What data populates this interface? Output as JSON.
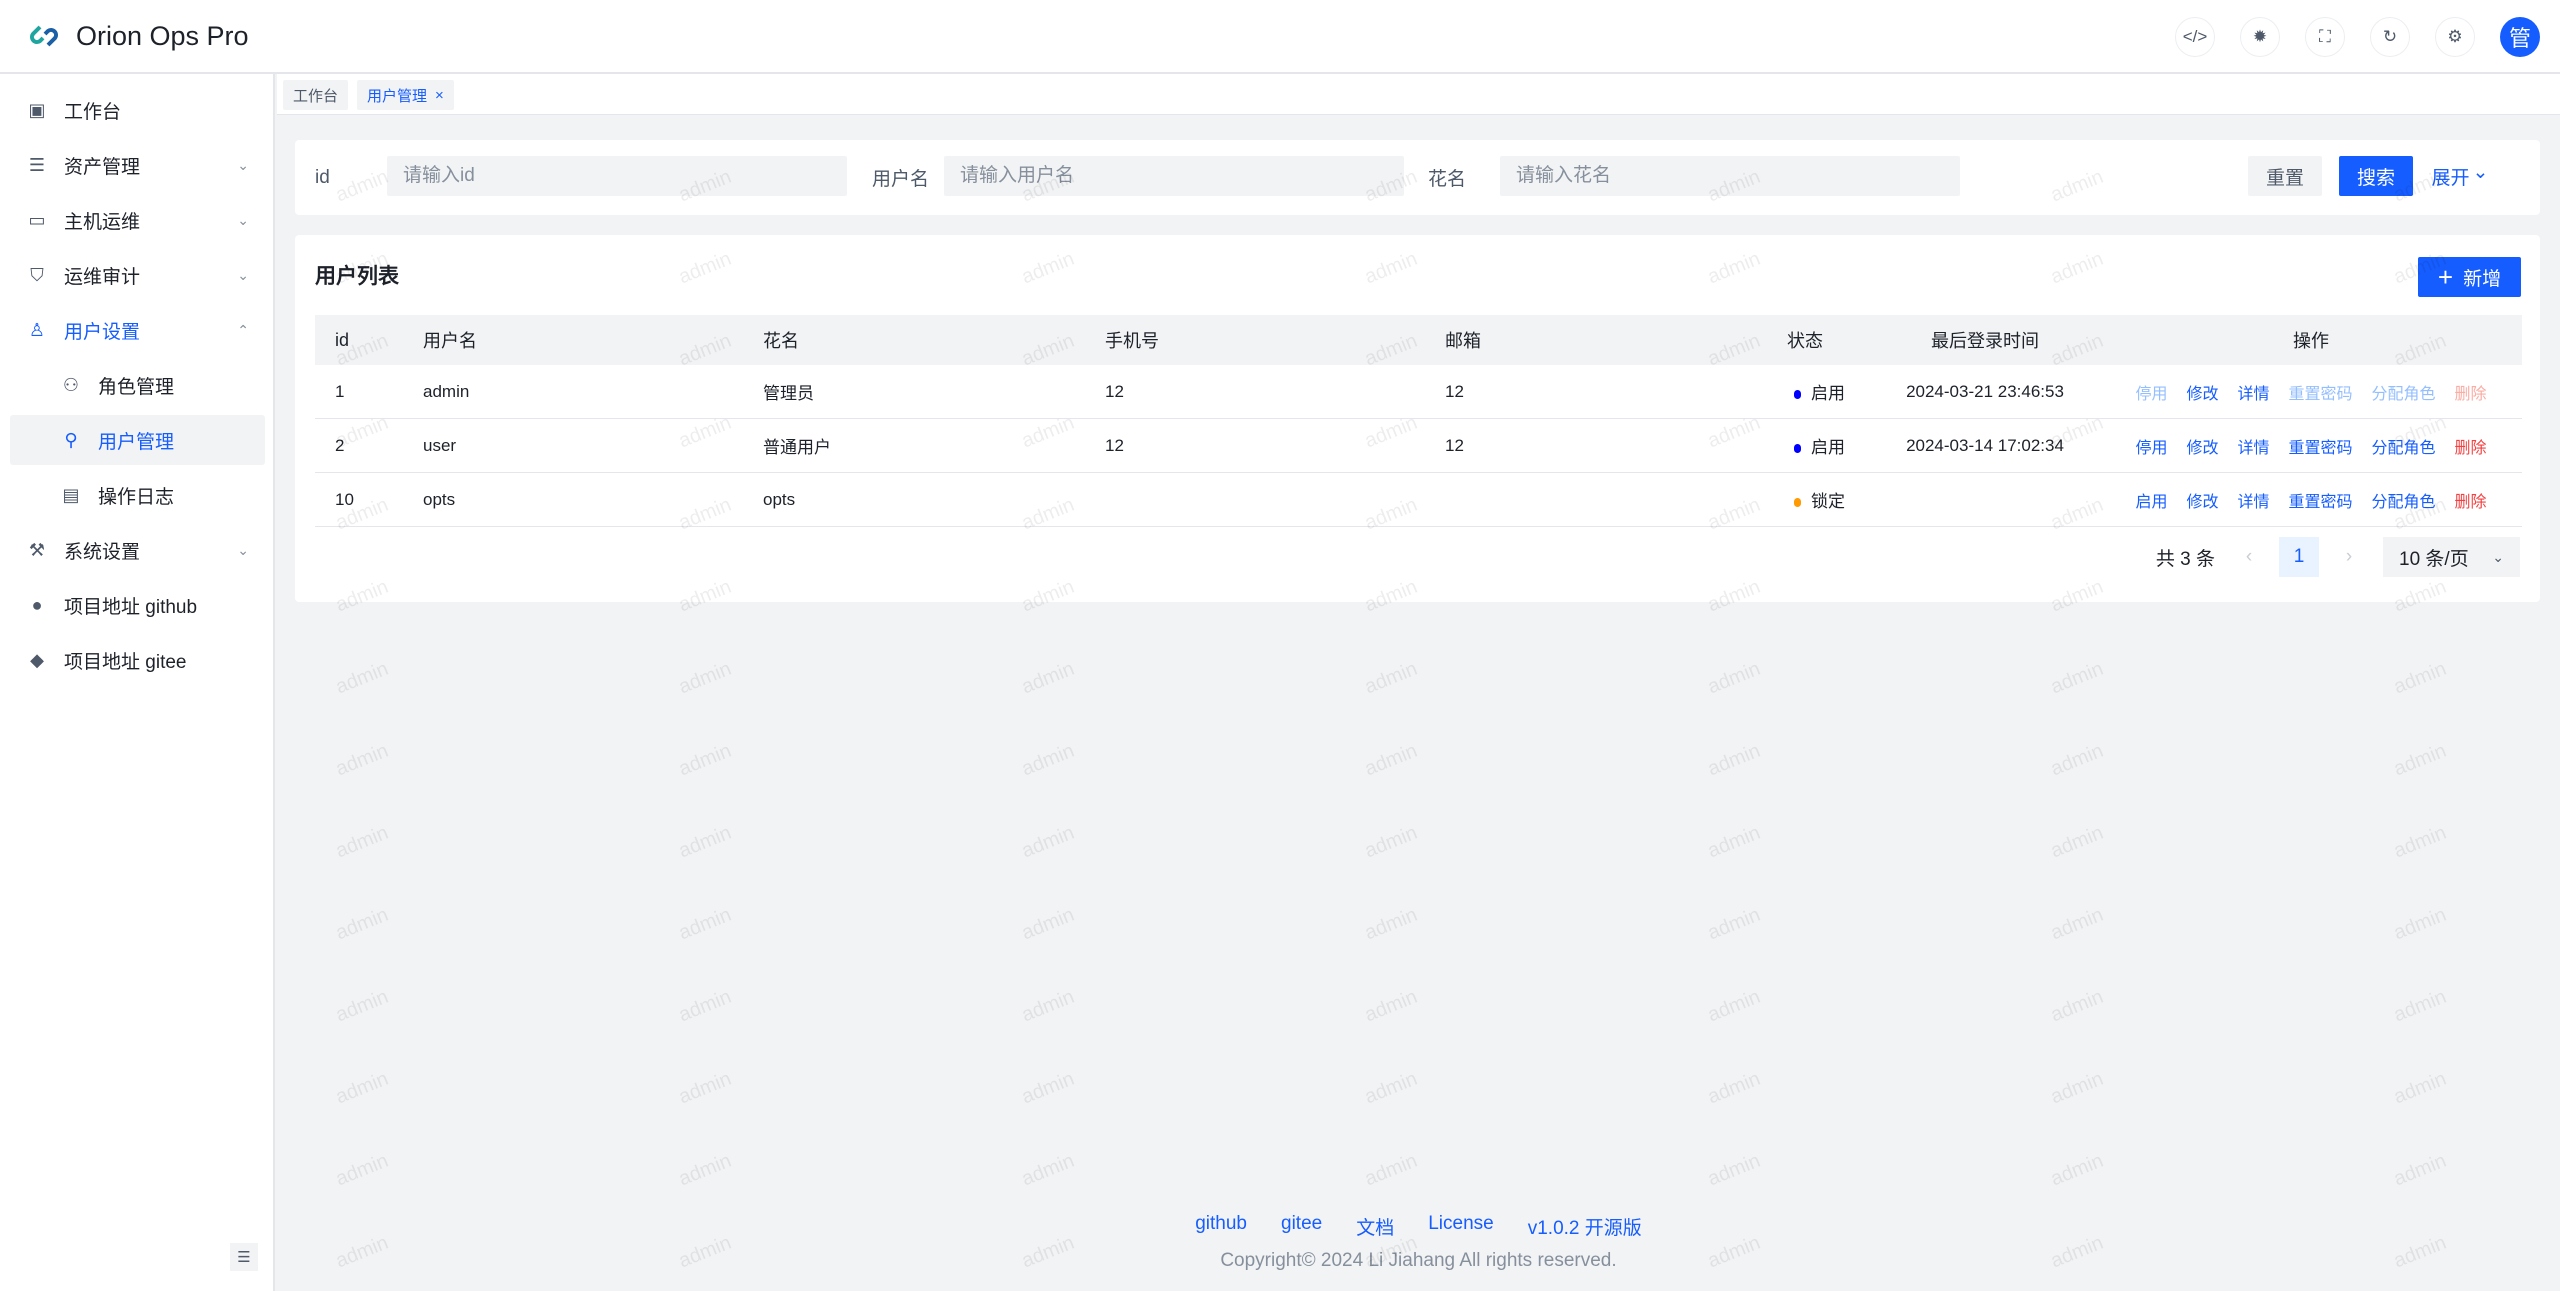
{
  "app": {
    "title": "Orion Ops Pro",
    "avatar_text": "管"
  },
  "header_icons": [
    "code-icon",
    "theme-sun-icon",
    "fullscreen-icon",
    "refresh-icon",
    "settings-icon"
  ],
  "sidebar": {
    "items": [
      {
        "label": "工作台",
        "icon": "dashboard-icon",
        "glyph": "▣"
      },
      {
        "label": "资产管理",
        "icon": "asset-icon",
        "glyph": "☰",
        "chevron": "⌄"
      },
      {
        "label": "主机运维",
        "icon": "monitor-icon",
        "glyph": "▭",
        "chevron": "⌄"
      },
      {
        "label": "运维审计",
        "icon": "shield-icon",
        "glyph": "⛉",
        "chevron": "⌄"
      },
      {
        "label": "用户设置",
        "icon": "user-icon",
        "glyph": "♙",
        "chevron": "⌃"
      },
      {
        "label": "角色管理",
        "icon": "role-icon",
        "glyph": "⚇"
      },
      {
        "label": "用户管理",
        "icon": "user-add-icon",
        "glyph": "⚲"
      },
      {
        "label": "操作日志",
        "icon": "log-icon",
        "glyph": "▤"
      },
      {
        "label": "系统设置",
        "icon": "wrench-icon",
        "glyph": "⚒",
        "chevron": "⌄"
      },
      {
        "label": "项目地址 github",
        "icon": "github-icon",
        "glyph": "●"
      },
      {
        "label": "项目地址 gitee",
        "icon": "gitee-icon",
        "glyph": "◆"
      }
    ]
  },
  "tabs": [
    {
      "label": "工作台"
    },
    {
      "label": "用户管理",
      "close": "×"
    }
  ],
  "search": {
    "id_label": "id",
    "id_placeholder": "请输入id",
    "username_label": "用户名",
    "username_placeholder": "请输入用户名",
    "nickname_label": "花名",
    "nickname_placeholder": "请输入花名",
    "reset": "重置",
    "search": "搜索",
    "expand": "展开",
    "expand_icon": "⌄"
  },
  "list": {
    "title": "用户列表",
    "add": "新增",
    "add_icon": "+",
    "columns": [
      "id",
      "用户名",
      "花名",
      "手机号",
      "邮箱",
      "状态",
      "最后登录时间",
      "操作"
    ],
    "rows": [
      {
        "id": "1",
        "username": "admin",
        "nickname": "管理员",
        "phone": "12",
        "email": "12",
        "status": "启用",
        "status_color": "#0000ff",
        "last_login": "2024-03-21 23:46:53",
        "actions": [
          {
            "label": "停用",
            "disabled": true
          },
          {
            "label": "修改"
          },
          {
            "label": "详情"
          },
          {
            "label": "重置密码",
            "disabled": true
          },
          {
            "label": "分配角色",
            "disabled": true
          },
          {
            "label": "删除",
            "danger": true,
            "disabled": true
          }
        ]
      },
      {
        "id": "2",
        "username": "user",
        "nickname": "普通用户",
        "phone": "12",
        "email": "12",
        "status": "启用",
        "status_color": "#0000ff",
        "last_login": "2024-03-14 17:02:34",
        "actions": [
          {
            "label": "停用"
          },
          {
            "label": "修改"
          },
          {
            "label": "详情"
          },
          {
            "label": "重置密码"
          },
          {
            "label": "分配角色"
          },
          {
            "label": "删除",
            "danger": true
          }
        ]
      },
      {
        "id": "10",
        "username": "opts",
        "nickname": "opts",
        "phone": "",
        "email": "",
        "status": "锁定",
        "status_color": "#ff9a00",
        "last_login": "",
        "actions": [
          {
            "label": "启用"
          },
          {
            "label": "修改"
          },
          {
            "label": "详情"
          },
          {
            "label": "重置密码"
          },
          {
            "label": "分配角色"
          },
          {
            "label": "删除",
            "danger": true
          }
        ]
      }
    ],
    "pagination": {
      "total": "共 3 条",
      "page": "1",
      "page_size": "10 条/页"
    }
  },
  "footer": {
    "links": [
      "github",
      "gitee",
      "文档",
      "License",
      "v1.0.2 开源版"
    ],
    "copyright": "Copyright© 2024 Li Jiahang All rights reserved."
  },
  "watermark": "admin",
  "colors": {
    "primary": "#165dff",
    "danger": "#f53f3f",
    "warning": "#ff9a00"
  }
}
